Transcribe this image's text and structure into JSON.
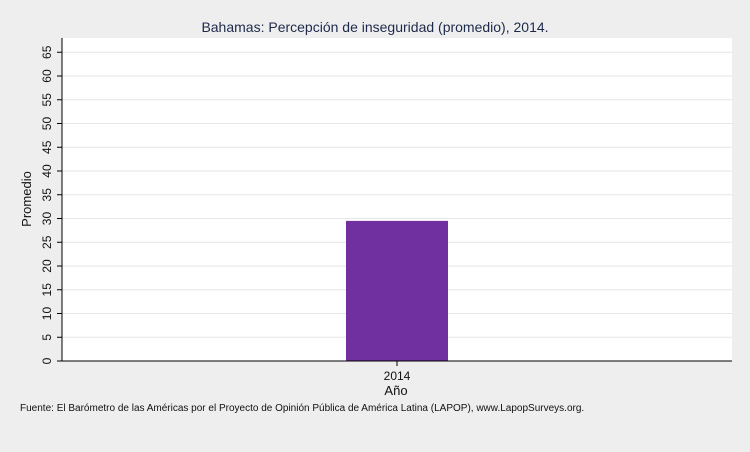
{
  "chart_data": {
    "type": "bar",
    "title": "Bahamas: Percepción de inseguridad (promedio), 2014.",
    "xlabel": "Año",
    "ylabel": "Promedio",
    "categories": [
      "2014"
    ],
    "values": [
      29.5
    ],
    "ylim": [
      0,
      68
    ],
    "yticks": [
      0,
      5,
      10,
      15,
      20,
      25,
      30,
      35,
      40,
      45,
      50,
      55,
      60,
      65
    ],
    "grid": true,
    "bar_color": "#7030a0"
  },
  "source": "Fuente: El Barómetro de las Américas por el Proyecto de Opinión Pública de América Latina (LAPOP), www.LapopSurveys.org."
}
